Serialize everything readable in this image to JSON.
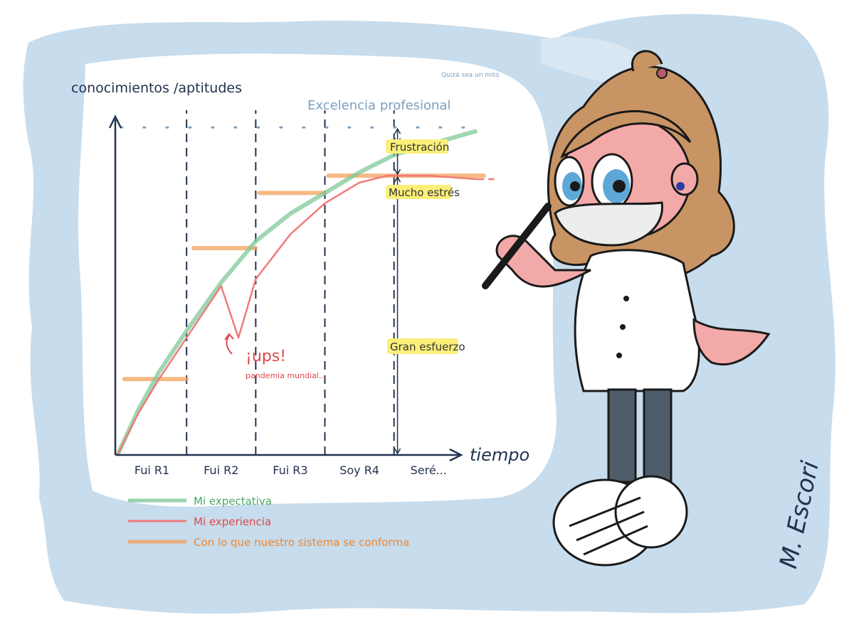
{
  "chart_data": {
    "type": "line",
    "ylabel": "conocimientos /aptitudes",
    "xlabel": "tiempo",
    "categories": [
      "Fui R1",
      "Fui R2",
      "Fui R3",
      "Soy R4",
      "Seré..."
    ],
    "xlim": [
      0,
      5.3
    ],
    "ylim": [
      0,
      10
    ],
    "ceiling": {
      "label": "Excelencia profesional",
      "value": 9.5,
      "note": "Quizá sea un mito"
    },
    "series": [
      {
        "name": "Mi expectativa",
        "color": "#7fc89a",
        "x": [
          0,
          0.3,
          0.6,
          1,
          1.5,
          2,
          2.5,
          3,
          3.5,
          4,
          4.5,
          5.2
        ],
        "y": [
          0,
          1.3,
          2.4,
          3.6,
          5.0,
          6.2,
          7.0,
          7.6,
          8.2,
          8.7,
          9.0,
          9.4
        ]
      },
      {
        "name": "Mi experiencia",
        "color": "#f07a78",
        "x": [
          0,
          0.3,
          0.6,
          1,
          1.5,
          1.75,
          2,
          2.5,
          3,
          3.5,
          3.9,
          4.5,
          5.2
        ],
        "y": [
          0,
          1.2,
          2.2,
          3.4,
          4.9,
          3.4,
          5.1,
          6.4,
          7.3,
          7.9,
          8.1,
          8.1,
          8.0
        ]
      }
    ],
    "steps": {
      "name": "Con lo que nuestro sistema se conforma",
      "color": "#f5a25d",
      "segments": [
        {
          "x0": 0.1,
          "x1": 1.0,
          "y": 2.2
        },
        {
          "x0": 1.1,
          "x1": 2.0,
          "y": 6.0
        },
        {
          "x0": 2.05,
          "x1": 3.0,
          "y": 7.6
        },
        {
          "x0": 3.05,
          "x1": 5.3,
          "y": 8.1
        }
      ]
    },
    "annotations": [
      {
        "text": "Frustración",
        "from": 9.5,
        "to": 9.0
      },
      {
        "text": "Mucho estrés",
        "from": 9.0,
        "to": 8.1
      },
      {
        "text": "Gran esfuerzo",
        "from": 8.1,
        "to": 0
      },
      {
        "text": "¡ups!",
        "sub": "pandemia mundial..."
      }
    ],
    "grid": false,
    "legend_position": "bottom-left"
  },
  "signature": "M. Escori",
  "colors": {
    "paper_blue": "#c7dcec",
    "hair": "#c99464",
    "skin": "#f4a9a9",
    "coat": "#ffffff",
    "pants": "#4f5d6b",
    "axis": "#22324f"
  }
}
